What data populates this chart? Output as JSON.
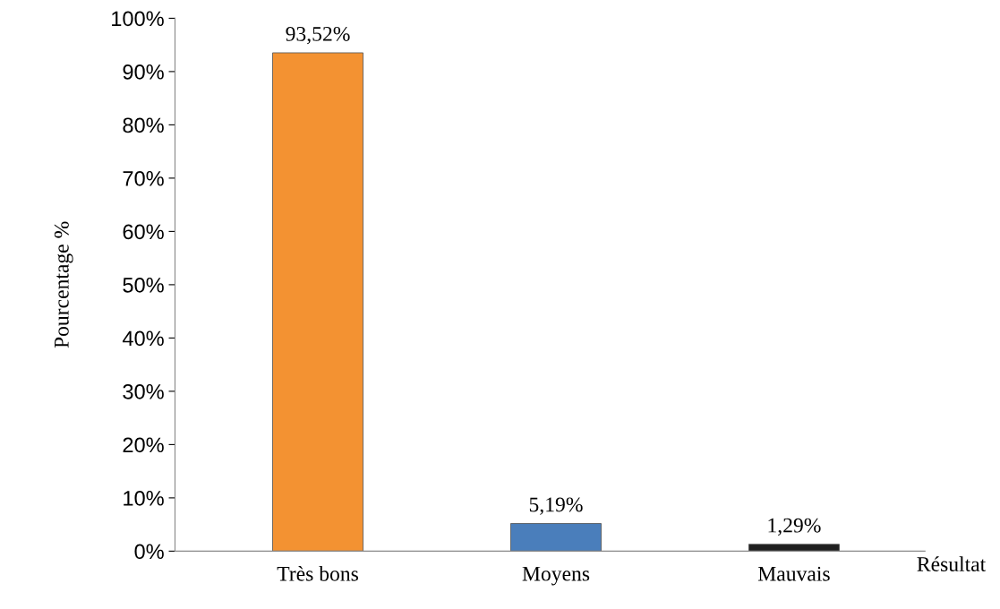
{
  "chart_data": {
    "type": "bar",
    "xlabel": "Résultat",
    "ylabel": "Pourcentage %",
    "categories": [
      "Très bons",
      "Moyens",
      "Mauvais"
    ],
    "values": [
      93.52,
      5.19,
      1.29
    ],
    "colors": [
      "#f39232",
      "#4a7ebb",
      "#1f1f1f"
    ],
    "value_labels": [
      "93,52%",
      "5,19%",
      "1,29%"
    ],
    "ylim": [
      0,
      100
    ],
    "yticks": [
      {
        "value": 0,
        "label": "0%"
      },
      {
        "value": 10,
        "label": "10%"
      },
      {
        "value": 20,
        "label": "20%"
      },
      {
        "value": 30,
        "label": "30%"
      },
      {
        "value": 40,
        "label": "40%"
      },
      {
        "value": 50,
        "label": "50%"
      },
      {
        "value": 60,
        "label": "60%"
      },
      {
        "value": 70,
        "label": "70%"
      },
      {
        "value": 80,
        "label": "80%"
      },
      {
        "value": 90,
        "label": "90%"
      },
      {
        "value": 100,
        "label": "100%"
      }
    ],
    "grid": false,
    "legend": false
  }
}
